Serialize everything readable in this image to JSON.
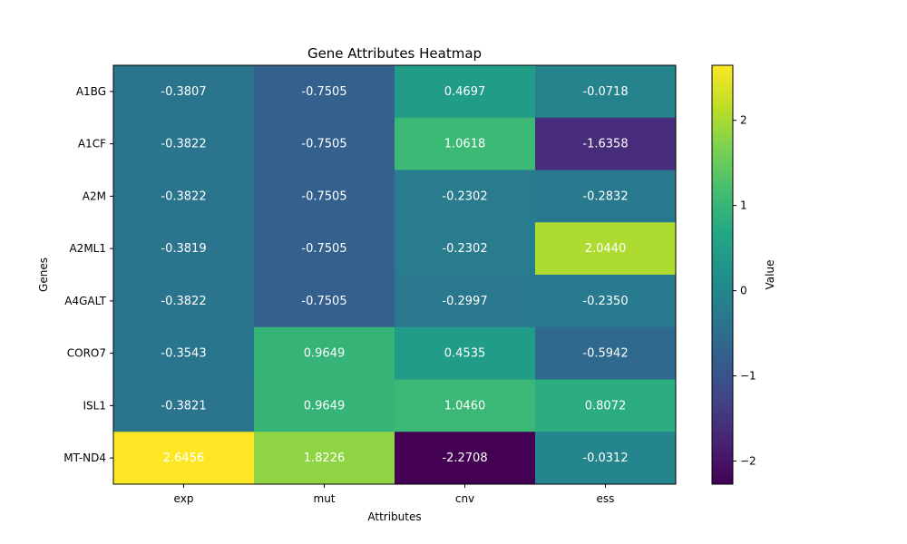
{
  "chart_data": {
    "type": "heatmap",
    "title": "Gene Attributes Heatmap",
    "xlabel": "Attributes",
    "ylabel": "Genes",
    "colorbar_label": "Value",
    "colormap": "viridis",
    "columns": [
      "exp",
      "mut",
      "cnv",
      "ess"
    ],
    "rows": [
      "A1BG",
      "A1CF",
      "A2M",
      "A2ML1",
      "A4GALT",
      "CORO7",
      "ISL1",
      "MT-ND4"
    ],
    "values": [
      [
        -0.3807,
        -0.7505,
        0.4697,
        -0.0718
      ],
      [
        -0.3822,
        -0.7505,
        1.0618,
        -1.6358
      ],
      [
        -0.3822,
        -0.7505,
        -0.2302,
        -0.2832
      ],
      [
        -0.3819,
        -0.7505,
        -0.2302,
        2.044
      ],
      [
        -0.3822,
        -0.7505,
        -0.2997,
        -0.235
      ],
      [
        -0.3543,
        0.9649,
        0.4535,
        -0.5942
      ],
      [
        -0.3821,
        0.9649,
        1.046,
        0.8072
      ],
      [
        2.6456,
        1.8226,
        -2.2708,
        -0.0312
      ]
    ],
    "value_labels": [
      [
        "-0.3807",
        "-0.7505",
        "0.4697",
        "-0.0718"
      ],
      [
        "-0.3822",
        "-0.7505",
        "1.0618",
        "-1.6358"
      ],
      [
        "-0.3822",
        "-0.7505",
        "-0.2302",
        "-0.2832"
      ],
      [
        "-0.3819",
        "-0.7505",
        "-0.2302",
        "2.0440"
      ],
      [
        "-0.3822",
        "-0.7505",
        "-0.2997",
        "-0.2350"
      ],
      [
        "-0.3543",
        "0.9649",
        "0.4535",
        "-0.5942"
      ],
      [
        "-0.3821",
        "0.9649",
        "1.0460",
        "0.8072"
      ],
      [
        "2.6456",
        "1.8226",
        "-2.2708",
        "-0.0312"
      ]
    ],
    "vmin": -2.2708,
    "vmax": 2.6456,
    "colorbar_ticks": [
      -2,
      -1,
      0,
      1,
      2
    ],
    "colorbar_tick_labels": [
      "−2",
      "−1",
      "0",
      "1",
      "2"
    ],
    "grid": false
  }
}
